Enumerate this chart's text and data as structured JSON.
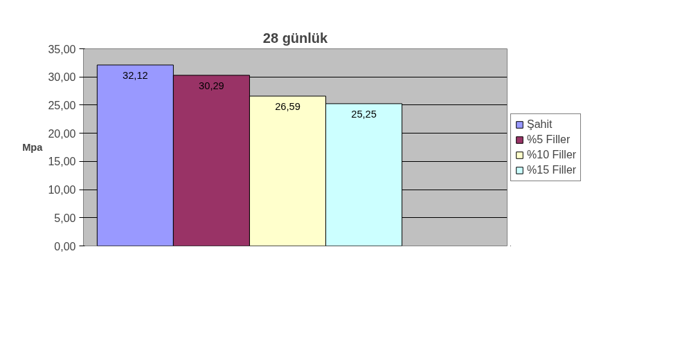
{
  "chart_data": {
    "type": "bar",
    "title": "28 günlük",
    "ylabel": "Mpa",
    "categories": [
      null
    ],
    "series": [
      {
        "name": "Şahit",
        "color": "#9999ff",
        "values": [
          32.12
        ],
        "value_labels": [
          "32,12"
        ]
      },
      {
        "name": "%5 Filler",
        "color": "#993366",
        "values": [
          30.29
        ],
        "value_labels": [
          "30,29"
        ]
      },
      {
        "name": "%10 Filler",
        "color": "#ffffcc",
        "values": [
          26.59
        ],
        "value_labels": [
          "26,59"
        ]
      },
      {
        "name": "%15 Filler",
        "color": "#ccffff",
        "values": [
          25.25
        ],
        "value_labels": [
          "25,25"
        ]
      }
    ],
    "ylim": [
      0,
      35
    ],
    "yticks": [
      {
        "value": 0,
        "label": "0,00"
      },
      {
        "value": 5,
        "label": "5,00"
      },
      {
        "value": 10,
        "label": "10,00"
      },
      {
        "value": 15,
        "label": "15,00"
      },
      {
        "value": 20,
        "label": "20,00"
      },
      {
        "value": 25,
        "label": "25,00"
      },
      {
        "value": 30,
        "label": "30,00"
      },
      {
        "value": 35,
        "label": "35,00"
      }
    ],
    "grid": "y",
    "legend": "right",
    "tick_labels": "y"
  }
}
